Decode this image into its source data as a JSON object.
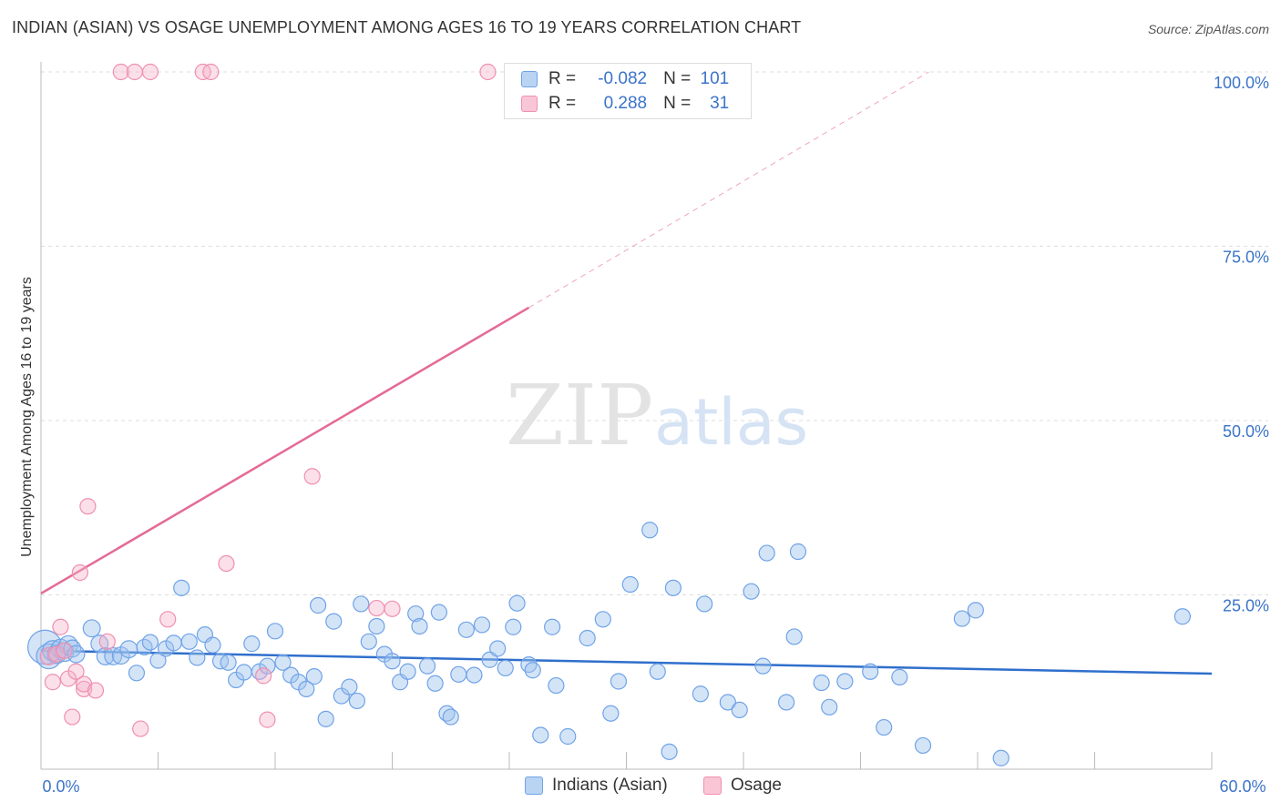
{
  "header": {
    "title": "INDIAN (ASIAN) VS OSAGE UNEMPLOYMENT AMONG AGES 16 TO 19 YEARS CORRELATION CHART",
    "source": "Source: ZipAtlas.com"
  },
  "watermark": {
    "part1": "ZIP",
    "part2": "atlas"
  },
  "legend_top": {
    "rows": [
      {
        "r_label": "R =",
        "r_value": "-0.082",
        "n_label": "N =",
        "n_value": "101",
        "color": "#6fa3e8"
      },
      {
        "r_label": "R =",
        "r_value": "0.288",
        "n_label": "N =",
        "n_value": "31",
        "color": "#f08fb0"
      }
    ]
  },
  "legend_bottom": {
    "items": [
      {
        "label": "Indians (Asian)",
        "color": "#6fa3e8"
      },
      {
        "label": "Osage",
        "color": "#f08fb0"
      }
    ]
  },
  "chart_data": {
    "type": "scatter",
    "title": "INDIAN (ASIAN) VS OSAGE UNEMPLOYMENT AMONG AGES 16 TO 19 YEARS CORRELATION CHART",
    "xlabel": "",
    "ylabel": "Unemployment Among Ages 16 to 19 years",
    "xlim": [
      0,
      60
    ],
    "ylim": [
      0,
      100
    ],
    "x_tick_labels": [
      "0.0%",
      "60.0%"
    ],
    "y_tick_values": [
      25,
      50,
      75,
      100
    ],
    "y_tick_labels": [
      "25.0%",
      "50.0%",
      "75.0%",
      "100.0%"
    ],
    "grid": true,
    "series": [
      {
        "name": "Indians (Asian)",
        "color": "#6fa3e8",
        "line_color": "#2f6fcc",
        "trend": {
          "x": [
            0,
            60
          ],
          "y": [
            17.0,
            13.7
          ]
        },
        "points": [
          [
            0.2,
            17.5,
            2.2
          ],
          [
            0.4,
            16.2,
            1.6
          ],
          [
            0.6,
            17.0,
            1.3
          ],
          [
            0.8,
            16.5,
            1.2
          ],
          [
            1.0,
            17.3,
            1.2
          ],
          [
            1.2,
            16.8,
            1.2
          ],
          [
            1.4,
            17.8,
            1.2
          ],
          [
            1.6,
            17.3,
            1.1
          ],
          [
            1.8,
            16.5,
            1.1
          ],
          [
            2.6,
            20.2,
            1.1
          ],
          [
            3.0,
            18.0,
            1.1
          ],
          [
            3.3,
            16.2,
            1.1
          ],
          [
            3.7,
            16.2,
            1.1
          ],
          [
            4.1,
            16.3,
            1.1
          ],
          [
            4.5,
            17.2,
            1.1
          ],
          [
            4.9,
            13.8,
            1.0
          ],
          [
            5.3,
            17.5,
            1.0
          ],
          [
            5.6,
            18.2,
            1.0
          ],
          [
            6.0,
            15.6,
            1.0
          ],
          [
            6.4,
            17.3,
            1.0
          ],
          [
            6.8,
            18.1,
            1.0
          ],
          [
            7.2,
            26.0,
            1.0
          ],
          [
            7.6,
            18.3,
            1.0
          ],
          [
            8.0,
            16.0,
            1.0
          ],
          [
            8.4,
            19.3,
            1.0
          ],
          [
            8.8,
            17.8,
            1.0
          ],
          [
            9.2,
            15.5,
            1.0
          ],
          [
            9.6,
            15.3,
            1.0
          ],
          [
            10.0,
            12.8,
            1.0
          ],
          [
            10.4,
            13.9,
            1.0
          ],
          [
            10.8,
            18.0,
            1.0
          ],
          [
            11.2,
            14.0,
            1.0
          ],
          [
            11.6,
            14.8,
            1.0
          ],
          [
            12.0,
            19.8,
            1.0
          ],
          [
            12.4,
            15.3,
            1.0
          ],
          [
            12.8,
            13.5,
            1.0
          ],
          [
            13.2,
            12.5,
            1.0
          ],
          [
            13.6,
            11.5,
            1.0
          ],
          [
            14.0,
            13.3,
            1.0
          ],
          [
            14.2,
            23.5,
            1.0
          ],
          [
            14.6,
            7.2,
            1.0
          ],
          [
            15.0,
            21.2,
            1.0
          ],
          [
            15.4,
            10.5,
            1.0
          ],
          [
            15.8,
            11.8,
            1.0
          ],
          [
            16.2,
            9.8,
            1.0
          ],
          [
            16.4,
            23.7,
            1.0
          ],
          [
            16.8,
            18.3,
            1.0
          ],
          [
            17.2,
            20.5,
            1.0
          ],
          [
            17.6,
            16.5,
            1.0
          ],
          [
            18.0,
            15.5,
            1.0
          ],
          [
            18.4,
            12.5,
            1.0
          ],
          [
            18.8,
            14.0,
            1.0
          ],
          [
            19.2,
            22.3,
            1.0
          ],
          [
            19.4,
            20.5,
            1.0
          ],
          [
            19.8,
            14.8,
            1.0
          ],
          [
            20.2,
            12.3,
            1.0
          ],
          [
            20.4,
            22.5,
            1.0
          ],
          [
            20.8,
            8.0,
            1.0
          ],
          [
            21.0,
            7.5,
            1.0
          ],
          [
            21.4,
            13.6,
            1.0
          ],
          [
            21.8,
            20.0,
            1.0
          ],
          [
            22.2,
            13.5,
            1.0
          ],
          [
            22.6,
            20.7,
            1.0
          ],
          [
            23.0,
            15.7,
            1.0
          ],
          [
            23.4,
            17.3,
            1.0
          ],
          [
            23.8,
            14.5,
            1.0
          ],
          [
            24.2,
            20.4,
            1.0
          ],
          [
            24.4,
            23.8,
            1.0
          ],
          [
            25.0,
            15.0,
            1.0
          ],
          [
            25.2,
            14.2,
            1.0
          ],
          [
            25.6,
            4.9,
            1.0
          ],
          [
            26.2,
            20.4,
            1.0
          ],
          [
            26.4,
            12.0,
            1.0
          ],
          [
            27.0,
            4.7,
            1.0
          ],
          [
            28.0,
            18.8,
            1.0
          ],
          [
            28.8,
            21.5,
            1.0
          ],
          [
            29.2,
            8.0,
            1.0
          ],
          [
            29.6,
            12.6,
            1.0
          ],
          [
            30.2,
            26.5,
            1.0
          ],
          [
            31.2,
            34.3,
            1.0
          ],
          [
            31.6,
            14.0,
            1.0
          ],
          [
            32.2,
            2.5,
            1.0
          ],
          [
            32.4,
            26.0,
            1.0
          ],
          [
            33.8,
            10.8,
            1.0
          ],
          [
            34.0,
            23.7,
            1.0
          ],
          [
            35.2,
            9.6,
            1.0
          ],
          [
            35.8,
            8.5,
            1.0
          ],
          [
            36.4,
            25.5,
            1.0
          ],
          [
            37.0,
            14.8,
            1.0
          ],
          [
            37.2,
            31.0,
            1.0
          ],
          [
            38.2,
            9.6,
            1.0
          ],
          [
            38.6,
            19.0,
            1.0
          ],
          [
            38.8,
            31.2,
            1.0
          ],
          [
            40.0,
            12.4,
            1.0
          ],
          [
            40.4,
            8.9,
            1.0
          ],
          [
            41.2,
            12.6,
            1.0
          ],
          [
            42.5,
            14.0,
            1.0
          ],
          [
            43.2,
            6.0,
            1.0
          ],
          [
            44.0,
            13.2,
            1.0
          ],
          [
            45.2,
            3.4,
            1.0
          ],
          [
            47.2,
            21.6,
            1.0
          ],
          [
            47.9,
            22.8,
            1.0
          ],
          [
            49.2,
            1.6,
            1.0
          ],
          [
            58.5,
            21.9,
            1.0
          ]
        ]
      },
      {
        "name": "Osage",
        "color": "#f08fb0",
        "line_color": "#e46a97",
        "trend": {
          "x": [
            0,
            25
          ],
          "y": [
            25.2,
            66.2
          ]
        },
        "trend_extension": {
          "x": [
            25,
            45.5
          ],
          "y": [
            66.2,
            100
          ]
        },
        "points": [
          [
            0.4,
            16.2,
            1.1
          ],
          [
            0.6,
            12.5,
            1.0
          ],
          [
            0.8,
            16.5,
            1.0
          ],
          [
            1.0,
            20.4,
            1.0
          ],
          [
            1.2,
            17.0,
            1.0
          ],
          [
            1.4,
            13.0,
            1.0
          ],
          [
            1.6,
            7.5,
            1.0
          ],
          [
            1.8,
            14.0,
            1.0
          ],
          [
            2.0,
            28.2,
            1.0
          ],
          [
            2.2,
            11.5,
            1.0
          ],
          [
            2.2,
            12.2,
            1.0
          ],
          [
            2.4,
            37.7,
            1.0
          ],
          [
            2.8,
            11.3,
            1.0
          ],
          [
            3.4,
            18.3,
            1.0
          ],
          [
            4.1,
            100,
            1.0
          ],
          [
            4.8,
            100,
            1.0
          ],
          [
            5.1,
            5.8,
            1.0
          ],
          [
            5.6,
            100,
            1.0
          ],
          [
            6.5,
            21.5,
            1.0
          ],
          [
            8.3,
            100,
            1.0
          ],
          [
            8.7,
            100,
            1.0
          ],
          [
            9.5,
            29.5,
            1.0
          ],
          [
            11.4,
            13.4,
            1.0
          ],
          [
            11.6,
            7.1,
            1.0
          ],
          [
            13.9,
            42.0,
            1.0
          ],
          [
            17.2,
            23.1,
            1.0
          ],
          [
            18.0,
            23.0,
            1.0
          ],
          [
            22.9,
            100,
            1.0
          ]
        ]
      }
    ]
  }
}
